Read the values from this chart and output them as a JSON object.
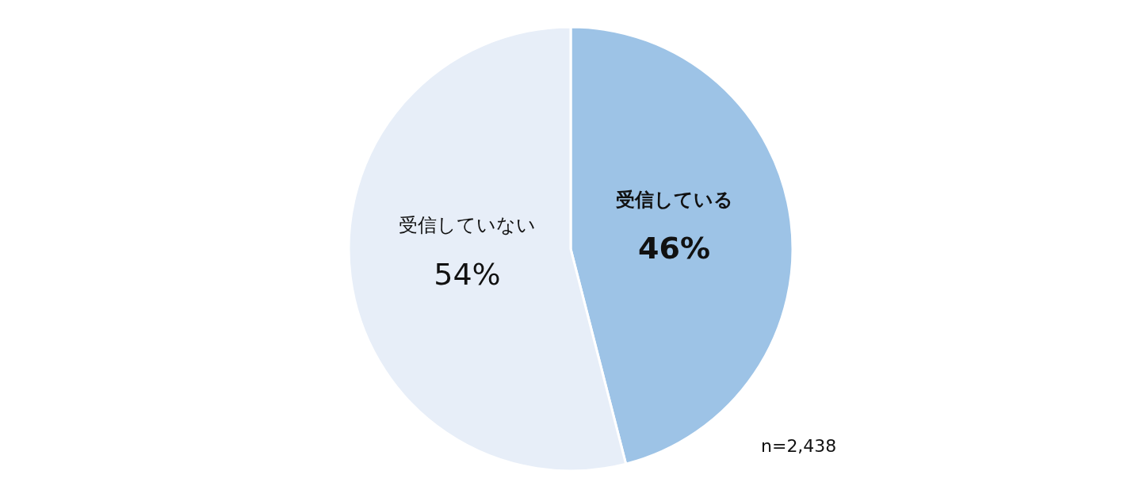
{
  "chart_data": {
    "type": "pie",
    "categories": [
      "受信している",
      "受信していない"
    ],
    "values": [
      46,
      54
    ],
    "value_labels": [
      "46%",
      "54%"
    ],
    "colors": [
      "#9dc3e6",
      "#e7eef8"
    ],
    "annotations": [
      "n=2,438"
    ]
  }
}
